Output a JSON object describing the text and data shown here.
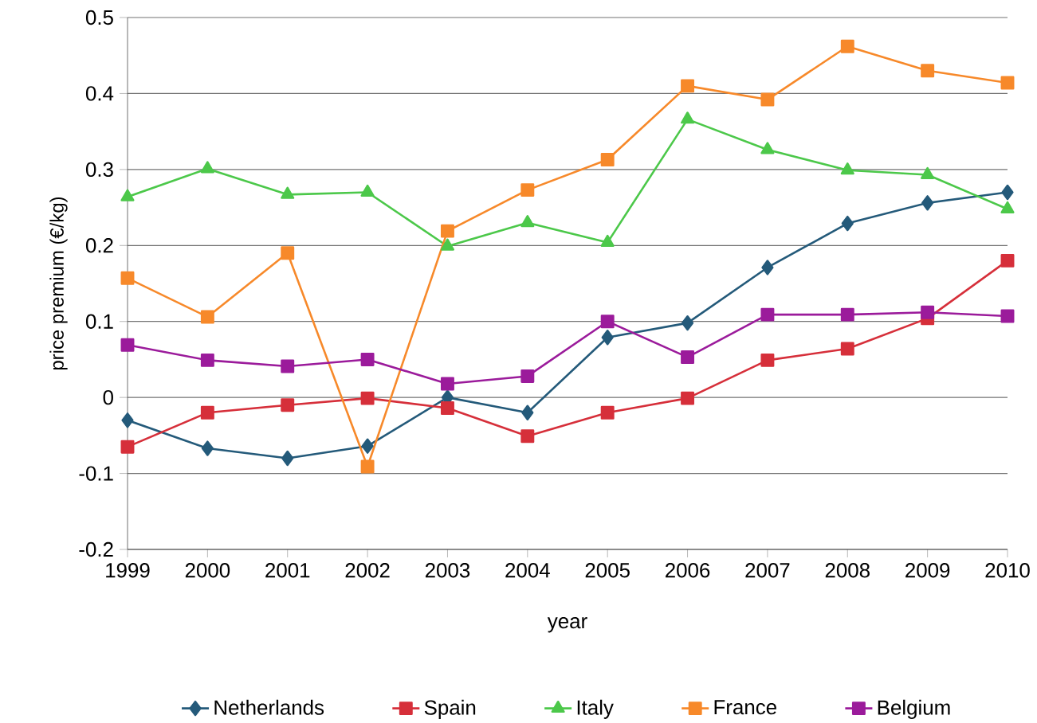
{
  "chart_data": {
    "type": "line",
    "xlabel": "year",
    "ylabel": "price premium (€/kg)",
    "categories": [
      "1999",
      "2000",
      "2001",
      "2002",
      "2003",
      "2004",
      "2005",
      "2006",
      "2007",
      "2008",
      "2009",
      "2010"
    ],
    "ylim": [
      -0.2,
      0.5
    ],
    "yticks": [
      -0.2,
      -0.1,
      0,
      0.1,
      0.2,
      0.3,
      0.4,
      0.5
    ],
    "grid": "y",
    "legend": "bottom",
    "line_style": "solid",
    "series": [
      {
        "name": "Netherlands",
        "color": "#245a7a",
        "marker": "diamond",
        "values": [
          -0.03,
          -0.067,
          -0.08,
          -0.064,
          0.0,
          -0.02,
          0.079,
          0.098,
          0.171,
          0.229,
          0.256,
          0.27
        ]
      },
      {
        "name": "Spain",
        "color": "#d62f3a",
        "marker": "square",
        "values": [
          -0.065,
          -0.02,
          -0.01,
          -0.001,
          -0.014,
          -0.051,
          -0.02,
          -0.001,
          0.049,
          0.064,
          0.104,
          0.18
        ]
      },
      {
        "name": "Italy",
        "color": "#4cc84a",
        "marker": "triangle",
        "values": [
          0.264,
          0.301,
          0.267,
          0.27,
          0.199,
          0.23,
          0.204,
          0.366,
          0.326,
          0.299,
          0.293,
          0.248
        ]
      },
      {
        "name": "France",
        "color": "#f7892a",
        "marker": "square",
        "values": [
          0.157,
          0.106,
          0.19,
          -0.091,
          0.219,
          0.273,
          0.313,
          0.41,
          0.392,
          0.462,
          0.43,
          0.414
        ]
      },
      {
        "name": "Belgium",
        "color": "#9b1b9b",
        "marker": "square",
        "values": [
          0.069,
          0.049,
          0.041,
          0.05,
          0.018,
          0.028,
          0.1,
          0.053,
          0.109,
          0.109,
          0.112,
          0.107
        ]
      }
    ]
  }
}
